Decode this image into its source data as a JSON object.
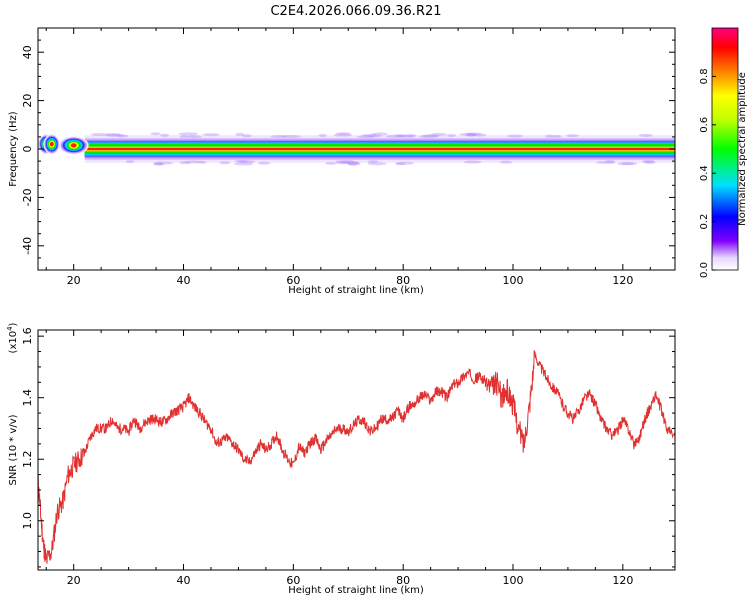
{
  "title": "C2E4.2026.066.09.36.R21",
  "chart_data": [
    {
      "type": "heatmap",
      "xlabel": "Height of straight line (km)",
      "ylabel": "Frequency (Hz)",
      "xlim": [
        13.5,
        129.5
      ],
      "ylim": [
        -50,
        50
      ],
      "xticks": [
        20,
        40,
        60,
        80,
        100,
        120
      ],
      "yticks": [
        -40,
        -20,
        0,
        20,
        40
      ],
      "colorbar": {
        "label": "Normalized spectral amplitude",
        "range": [
          0,
          1
        ],
        "ticks": [
          "0.0",
          "0.2",
          "0.4",
          "0.6",
          "0.8"
        ],
        "colormap": "rainbow (white-purple-blue-cyan-green-yellow-orange-red-magenta)"
      },
      "ridge": {
        "description": "narrow band centred at 0 Hz along full height range",
        "center_hz": 0,
        "core_halfwidth_hz": 1,
        "glow_halfwidth_hz": 3,
        "blob_x_km": [
          15,
          16,
          20
        ],
        "blob_peak_hz": [
          2,
          2,
          1.5
        ]
      }
    },
    {
      "type": "line",
      "xlabel": "Height of straight line (km)",
      "ylabel": "SNR (10 * v/v)",
      "y_multiplier": "(x10^4)",
      "xlim": [
        13.5,
        129.5
      ],
      "ylim": [
        0.84,
        1.62
      ],
      "xticks": [
        20,
        40,
        60,
        80,
        100,
        120
      ],
      "yticks": [
        "1.0",
        "1.2",
        "1.4",
        "1.6"
      ],
      "line_color": "#e03030",
      "series": [
        {
          "x": [
            13.5,
            14,
            14.5,
            15,
            16,
            17,
            18,
            19,
            20,
            21,
            22,
            23,
            24,
            25,
            26,
            27,
            28,
            29,
            30,
            31,
            32,
            33,
            34,
            35,
            36,
            37,
            38,
            39,
            40,
            41,
            42,
            43,
            44,
            45,
            46,
            47,
            48,
            49,
            50,
            51,
            52,
            53,
            54,
            55,
            56,
            57,
            58,
            59,
            60,
            61,
            62,
            63,
            64,
            65,
            66,
            67,
            68,
            69,
            70,
            71,
            72,
            73,
            74,
            75,
            76,
            77,
            78,
            79,
            80,
            81,
            82,
            83,
            84,
            85,
            86,
            87,
            88,
            89,
            90,
            91,
            92,
            93,
            94,
            95,
            96,
            97,
            98,
            99,
            100,
            101,
            102,
            103,
            104,
            105,
            106,
            107,
            108,
            109,
            110,
            111,
            112,
            113,
            114,
            115,
            116,
            117,
            118,
            119,
            120,
            121,
            122,
            123,
            124,
            125,
            126,
            127,
            128,
            129.5
          ],
          "y": [
            1.13,
            1.02,
            0.92,
            0.87,
            0.9,
            1.03,
            1.06,
            1.15,
            1.18,
            1.2,
            1.22,
            1.27,
            1.3,
            1.3,
            1.3,
            1.33,
            1.3,
            1.3,
            1.29,
            1.33,
            1.3,
            1.32,
            1.33,
            1.33,
            1.32,
            1.33,
            1.35,
            1.36,
            1.37,
            1.4,
            1.37,
            1.35,
            1.32,
            1.3,
            1.25,
            1.26,
            1.27,
            1.25,
            1.23,
            1.2,
            1.19,
            1.22,
            1.25,
            1.23,
            1.25,
            1.28,
            1.23,
            1.2,
            1.18,
            1.24,
            1.22,
            1.25,
            1.27,
            1.23,
            1.26,
            1.28,
            1.3,
            1.3,
            1.29,
            1.31,
            1.33,
            1.32,
            1.29,
            1.3,
            1.33,
            1.33,
            1.33,
            1.36,
            1.33,
            1.37,
            1.38,
            1.4,
            1.41,
            1.39,
            1.42,
            1.42,
            1.4,
            1.44,
            1.45,
            1.47,
            1.48,
            1.46,
            1.47,
            1.45,
            1.43,
            1.45,
            1.4,
            1.42,
            1.38,
            1.3,
            1.25,
            1.38,
            1.54,
            1.5,
            1.47,
            1.44,
            1.42,
            1.38,
            1.35,
            1.33,
            1.36,
            1.4,
            1.41,
            1.38,
            1.33,
            1.3,
            1.28,
            1.29,
            1.33,
            1.3,
            1.25,
            1.27,
            1.33,
            1.37,
            1.41,
            1.36,
            1.3,
            1.27
          ]
        }
      ]
    }
  ]
}
